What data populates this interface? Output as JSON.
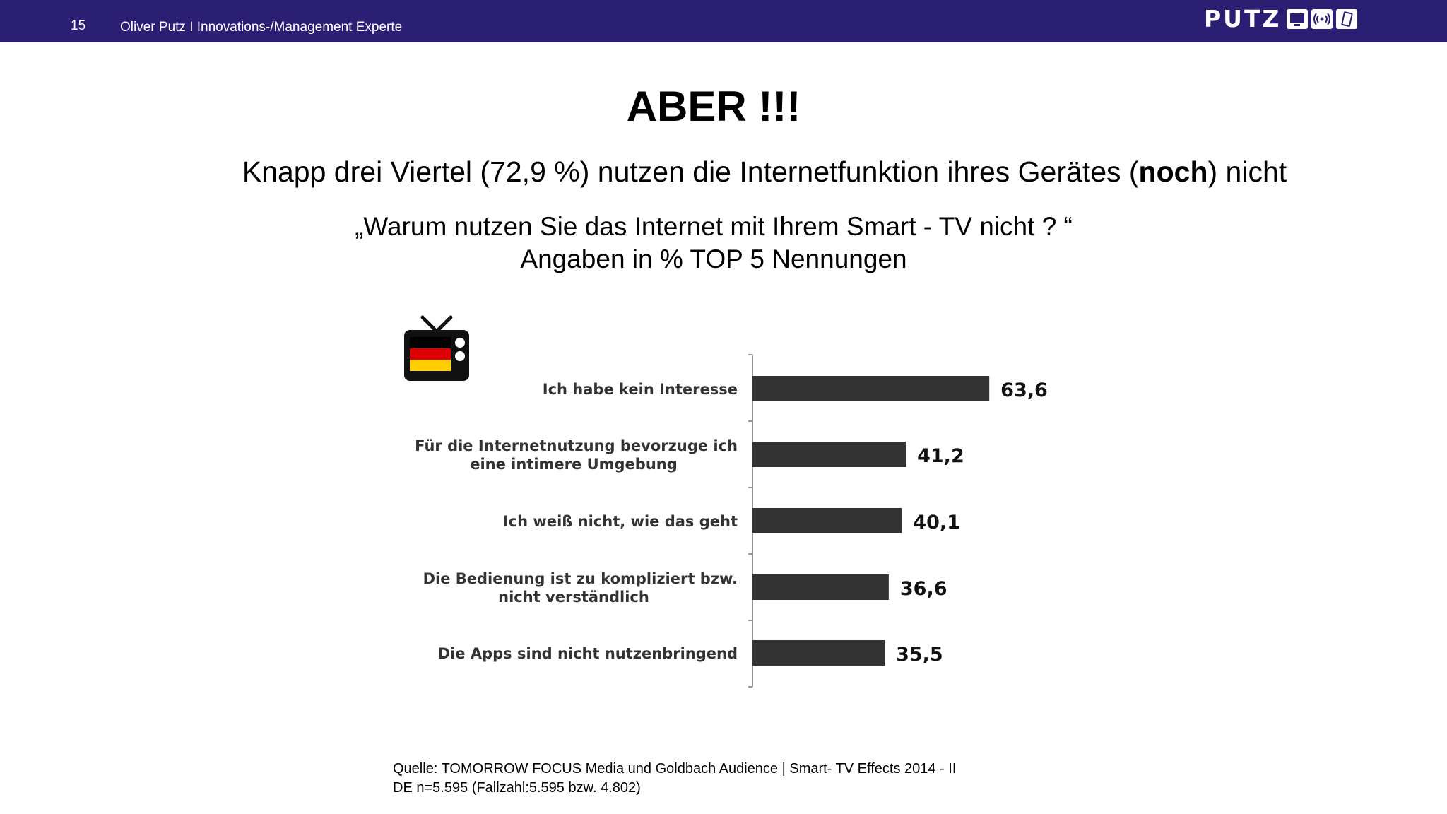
{
  "header": {
    "page_number": "15",
    "author": "Oliver Putz  I  Innovations-/Management Experte",
    "logo_text": "PUTZ",
    "bar_color": "#2b1f74"
  },
  "slide": {
    "title": "ABER !!!",
    "subtitle_pre": "Knapp drei Viertel (72,9 %) nutzen die Internetfunktion ihres Gerätes (",
    "subtitle_bold": "noch",
    "subtitle_post": ") nicht",
    "question_line1": "„Warum nutzen Sie das Internet mit Ihrem Smart - TV nicht ? “",
    "question_line2": "Angaben in % TOP 5 Nennungen",
    "source_line1": "Quelle: TOMORROW FOCUS Media und Goldbach Audience | Smart- TV Effects 2014 - II",
    "source_line2": "DE n=5.595 (Fallzahl:5.595 bzw. 4.802)"
  },
  "icons": {
    "tv": "germany-flag-tv-icon",
    "logo": [
      "screen-icon",
      "broadcast-icon",
      "tablet-icon"
    ]
  },
  "chart_data": {
    "type": "bar",
    "orientation": "horizontal",
    "categories": [
      [
        "Ich habe kein Interesse"
      ],
      [
        "Für die Internetnutzung bevorzuge ich",
        "eine intimere Umgebung"
      ],
      [
        "Ich weiß nicht, wie das geht"
      ],
      [
        "Die Bedienung ist zu kompliziert bzw.",
        "nicht verständlich"
      ],
      [
        "Die Apps sind nicht nutzenbringend"
      ]
    ],
    "values": [
      63.6,
      41.2,
      40.1,
      36.6,
      35.5
    ],
    "value_labels": [
      "63,6",
      "41,2",
      "40,1",
      "36,6",
      "35,5"
    ],
    "bar_color": "#333333",
    "grid": false
  }
}
